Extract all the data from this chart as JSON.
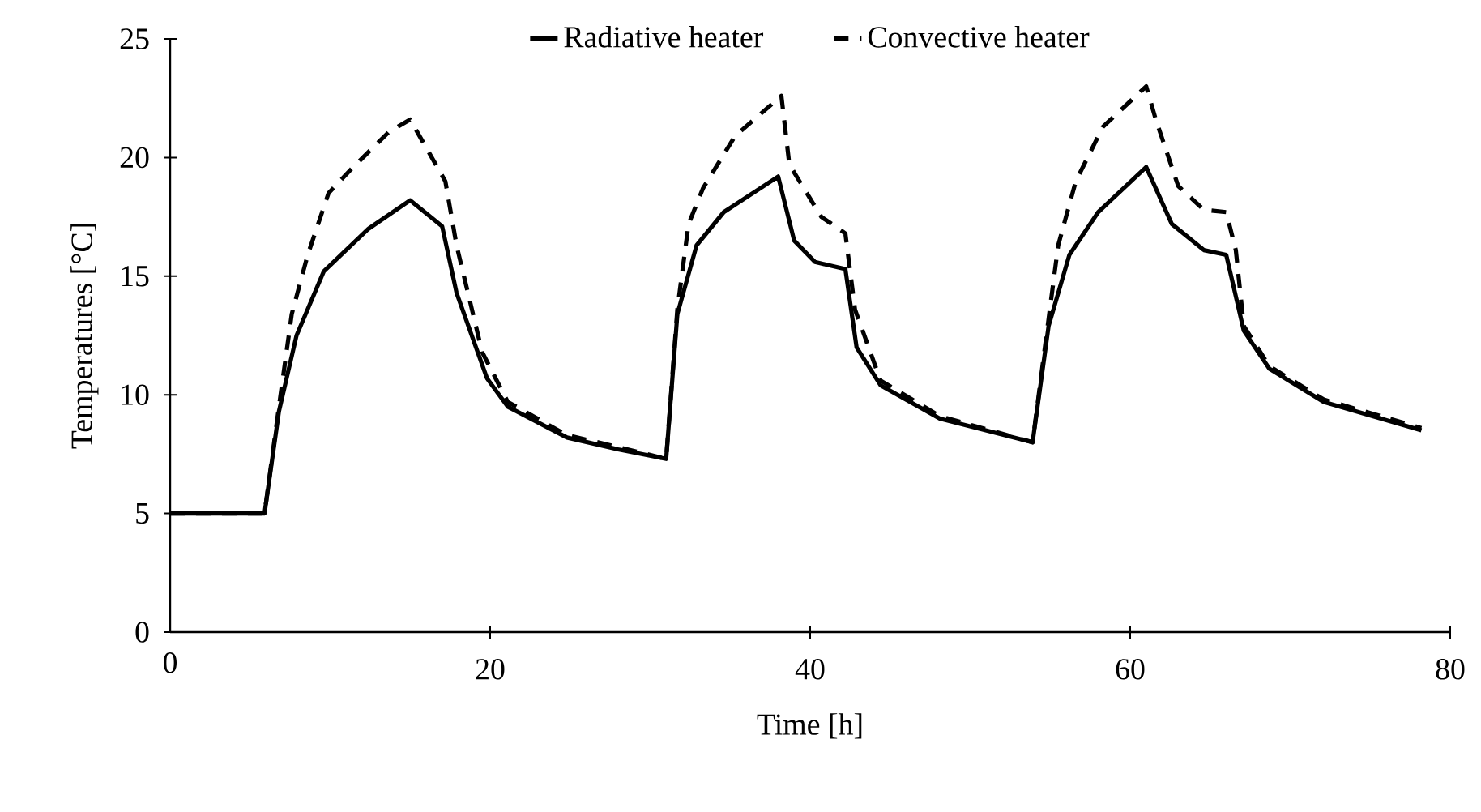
{
  "chart_data": {
    "type": "line",
    "xlabel": "Time [h]",
    "ylabel": "Temperatures [°C]",
    "xlim": [
      0,
      80
    ],
    "xticks": [
      0,
      20,
      40,
      60,
      80
    ],
    "ylim": [
      0,
      25
    ],
    "yticks": [
      0,
      5,
      10,
      15,
      20,
      25
    ],
    "grid": false,
    "legend": "top",
    "marker": "none",
    "series": [
      {
        "name": "Radiative heater",
        "color": "#000000",
        "line_style": "solid",
        "x": [
          0,
          5.9,
          6.8,
          7.9,
          9.6,
          12.4,
          15.0,
          17.0,
          17.9,
          19.8,
          21.1,
          24.8,
          28.0,
          31.0,
          31.7,
          32.9,
          34.6,
          38.0,
          39.0,
          40.3,
          42.2,
          42.9,
          44.4,
          48.1,
          53.9,
          54.9,
          56.2,
          58.0,
          61.0,
          62.6,
          64.6,
          66.0,
          67.1,
          68.7,
          72.1,
          78.2
        ],
        "values": [
          5,
          5,
          9.3,
          12.5,
          15.2,
          17.0,
          18.2,
          17.1,
          14.3,
          10.7,
          9.5,
          8.2,
          7.7,
          7.3,
          13.4,
          16.3,
          17.7,
          19.2,
          16.5,
          15.6,
          15.3,
          12.0,
          10.4,
          9.0,
          8.0,
          12.9,
          15.9,
          17.7,
          19.6,
          17.2,
          16.1,
          15.9,
          12.7,
          11.1,
          9.7,
          8.5
        ]
      },
      {
        "name": "Convective heater",
        "color": "#000000",
        "line_style": "dashed",
        "x": [
          0,
          5.9,
          6.8,
          7.6,
          8.6,
          9.9,
          11.3,
          13.7,
          15.0,
          17.2,
          17.9,
          19.5,
          21.1,
          24.8,
          28.0,
          31.0,
          31.7,
          32.4,
          33.3,
          35.3,
          38.2,
          38.7,
          40.7,
          42.2,
          42.8,
          44.4,
          48.1,
          53.9,
          54.9,
          55.5,
          56.6,
          58.3,
          61.0,
          61.6,
          63.0,
          64.6,
          66.0,
          66.6,
          67.1,
          68.7,
          72.1,
          78.2
        ],
        "values": [
          5,
          5,
          9.5,
          13.4,
          15.9,
          18.5,
          19.5,
          21.1,
          21.6,
          19.0,
          16.3,
          11.8,
          9.7,
          8.3,
          7.8,
          7.3,
          13.6,
          17.2,
          18.7,
          20.9,
          22.6,
          19.7,
          17.5,
          16.8,
          13.6,
          10.6,
          9.1,
          8.0,
          13.2,
          16.3,
          19.0,
          21.3,
          23.0,
          21.6,
          18.8,
          17.8,
          17.7,
          16.1,
          12.9,
          11.2,
          9.8,
          8.6
        ]
      }
    ]
  }
}
